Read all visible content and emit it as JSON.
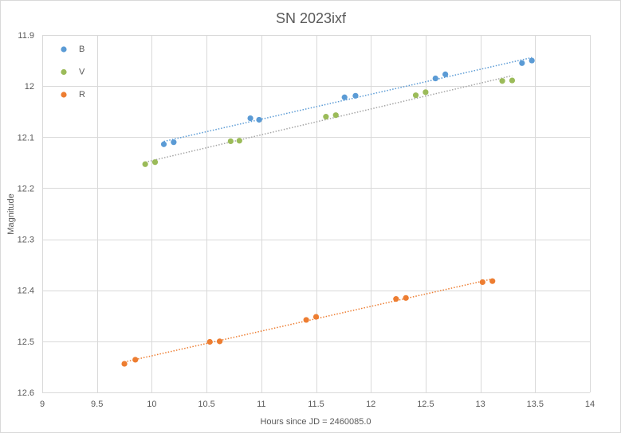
{
  "chart_data": {
    "type": "scatter",
    "title": "SN 2023ixf",
    "xlabel": "Hours since JD = 2460085.0",
    "ylabel": "Magnitude",
    "xlim": [
      9,
      14
    ],
    "ylim": [
      11.9,
      12.6
    ],
    "y_inverted": true,
    "grid": true,
    "legend_position": "top-left",
    "x_ticks": [
      "9",
      "9.5",
      "10",
      "10.5",
      "11",
      "11.5",
      "12",
      "12.5",
      "13",
      "13.5",
      "14"
    ],
    "y_ticks": [
      "11.9",
      "12",
      "12.1",
      "12.2",
      "12.3",
      "12.4",
      "12.5",
      "12.6"
    ],
    "x_tick_values": [
      9,
      9.5,
      10,
      10.5,
      11,
      11.5,
      12,
      12.5,
      13,
      13.5,
      14
    ],
    "y_tick_values": [
      11.9,
      12.0,
      12.1,
      12.2,
      12.3,
      12.4,
      12.5,
      12.6
    ],
    "series": [
      {
        "name": "B",
        "color": "#5b9bd5",
        "trendline": true,
        "trend_color": "#5b9bd5",
        "x": [
          10.11,
          10.2,
          10.9,
          10.98,
          11.76,
          11.86,
          12.59,
          12.68,
          13.38,
          13.47
        ],
        "y": [
          12.114,
          12.11,
          12.063,
          12.066,
          12.022,
          12.019,
          11.985,
          11.977,
          11.955,
          11.95
        ]
      },
      {
        "name": "V",
        "color": "#9bbb59",
        "trendline": true,
        "trend_color": "#a5a5a5",
        "x": [
          9.94,
          10.03,
          10.72,
          10.8,
          11.59,
          11.68,
          12.41,
          12.5,
          13.2,
          13.29
        ],
        "y": [
          12.153,
          12.149,
          12.108,
          12.107,
          12.06,
          12.057,
          12.018,
          12.012,
          11.99,
          11.989
        ]
      },
      {
        "name": "R",
        "color": "#ed7d31",
        "trendline": true,
        "trend_color": "#ed7d31",
        "x": [
          9.75,
          9.85,
          10.53,
          10.62,
          11.41,
          11.5,
          12.23,
          12.32,
          13.02,
          13.11
        ],
        "y": [
          12.544,
          12.536,
          12.501,
          12.5,
          12.458,
          12.452,
          12.417,
          12.415,
          12.384,
          12.382
        ]
      }
    ]
  }
}
